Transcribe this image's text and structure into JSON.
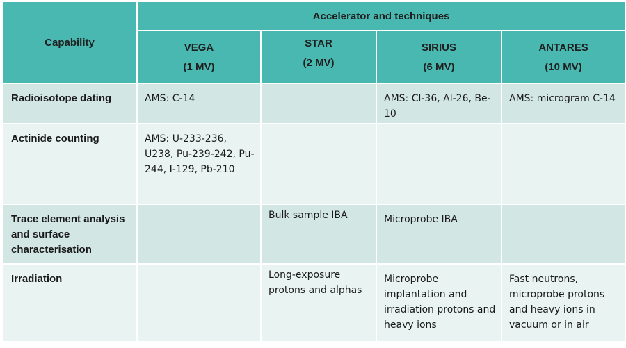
{
  "header": {
    "capability": "Capability",
    "group": "Accelerator and techniques",
    "accelerators": [
      {
        "name": "VEGA",
        "voltage": "(1 MV)"
      },
      {
        "name": "STAR",
        "voltage": "(2 MV)"
      },
      {
        "name": "SIRIUS",
        "voltage": "(6 MV)"
      },
      {
        "name": "ANTARES",
        "voltage": "(10 MV)"
      }
    ]
  },
  "rows": [
    {
      "capability": "Radioisotope dating",
      "cells": [
        "AMS: C-14",
        "",
        "AMS: Cl-36, Al-26, Be-10",
        "AMS: microgram C-14"
      ]
    },
    {
      "capability": "Actinide counting",
      "cells": [
        "AMS: U-233-236, U238, Pu-239-242, Pu-244, I-129, Pb-210",
        "",
        "",
        ""
      ]
    },
    {
      "capability": "Trace element analysis and surface characterisation",
      "cells": [
        "",
        "Bulk sample IBA",
        "Microprobe IBA",
        ""
      ]
    },
    {
      "capability": "Irradiation",
      "cells": [
        "",
        "Long-exposure protons and alphas",
        "Microprobe implantation and irradiation protons and heavy ions",
        "Fast neutrons, microprobe protons and heavy ions in vacuum or in air"
      ]
    }
  ]
}
